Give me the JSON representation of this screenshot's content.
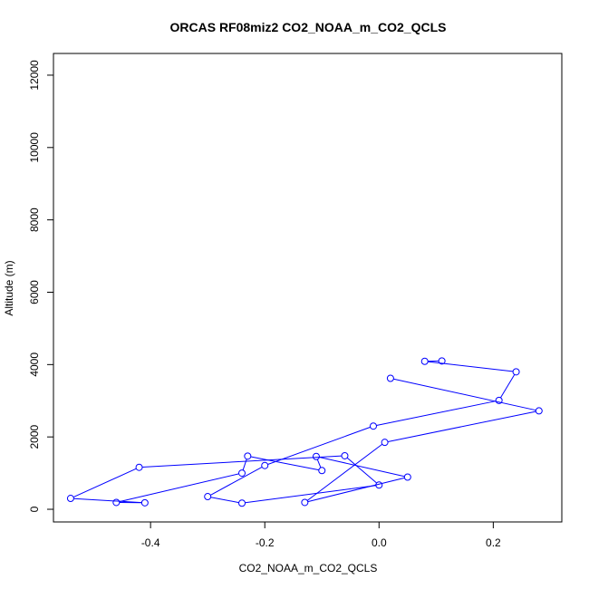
{
  "chart_data": {
    "type": "line",
    "title": "ORCAS RF08miz2 CO2_NOAA_m_CO2_QCLS",
    "xlabel": "CO2_NOAA_m_CO2_QCLS",
    "ylabel": "Altitude (m)",
    "xlim": [
      -0.57,
      0.32
    ],
    "ylim": [
      -350,
      12600
    ],
    "xticks": [
      -0.4,
      -0.2,
      0.0,
      0.2
    ],
    "xtick_labels": [
      "-0.4",
      "-0.2",
      "0.0",
      "0.2"
    ],
    "yticks": [
      0,
      2000,
      4000,
      6000,
      8000,
      10000,
      12000
    ],
    "ytick_labels": [
      "0",
      "2000",
      "4000",
      "6000",
      "8000",
      "10000",
      "12000"
    ],
    "series_color": "#0000ff",
    "markers": "open-circle",
    "grid": false,
    "series": [
      {
        "points": [
          {
            "x": 0.11,
            "y": 4100
          },
          {
            "x": 0.08,
            "y": 4090
          },
          {
            "x": 0.24,
            "y": 3800
          },
          {
            "x": 0.21,
            "y": 3010
          },
          {
            "x": -0.01,
            "y": 2300
          },
          {
            "x": -0.2,
            "y": 1210
          },
          {
            "x": -0.3,
            "y": 350
          },
          {
            "x": -0.24,
            "y": 170
          },
          {
            "x": 0.0,
            "y": 670
          },
          {
            "x": -0.06,
            "y": 1480
          },
          {
            "x": -0.42,
            "y": 1160
          },
          {
            "x": -0.54,
            "y": 300
          },
          {
            "x": -0.41,
            "y": 180
          },
          {
            "x": -0.46,
            "y": 190
          },
          {
            "x": -0.24,
            "y": 1000
          },
          {
            "x": -0.23,
            "y": 1470
          },
          {
            "x": -0.1,
            "y": 1070
          },
          {
            "x": -0.11,
            "y": 1460
          },
          {
            "x": 0.05,
            "y": 890
          },
          {
            "x": -0.13,
            "y": 190
          },
          {
            "x": 0.01,
            "y": 1850
          },
          {
            "x": 0.28,
            "y": 2720
          },
          {
            "x": 0.02,
            "y": 3620
          }
        ]
      }
    ]
  }
}
